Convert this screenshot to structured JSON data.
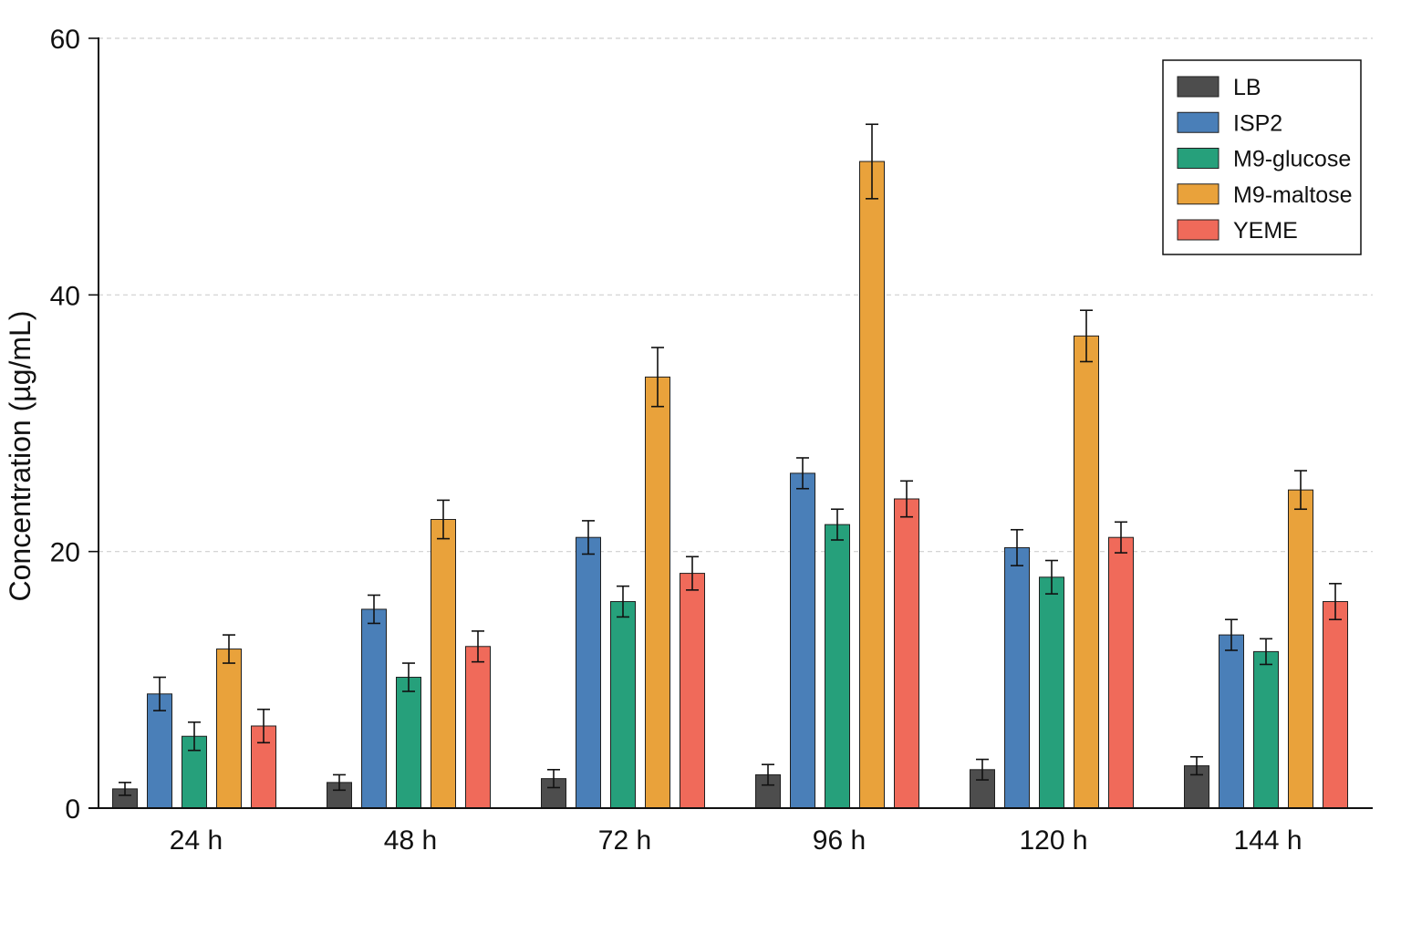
{
  "chart_data": {
    "type": "bar",
    "categories": [
      "24 h",
      "48 h",
      "72 h",
      "96 h",
      "120 h",
      "144 h"
    ],
    "series": [
      {
        "name": "LB",
        "color": "#4d4d4d",
        "values": [
          1.5,
          2.0,
          2.3,
          2.6,
          3.0,
          3.3
        ],
        "errors": [
          0.5,
          0.6,
          0.7,
          0.8,
          0.8,
          0.7
        ]
      },
      {
        "name": "ISP2",
        "color": "#4a7fb8",
        "values": [
          8.9,
          15.5,
          21.1,
          26.1,
          20.3,
          13.5
        ],
        "errors": [
          1.3,
          1.1,
          1.3,
          1.2,
          1.4,
          1.2
        ]
      },
      {
        "name": "M9-glucose",
        "color": "#26a07b",
        "values": [
          5.6,
          10.2,
          16.1,
          22.1,
          18.0,
          12.2
        ],
        "errors": [
          1.1,
          1.1,
          1.2,
          1.2,
          1.3,
          1.0
        ]
      },
      {
        "name": "M9-maltose",
        "color": "#e9a23b",
        "values": [
          12.4,
          22.5,
          33.6,
          50.4,
          36.8,
          24.8
        ],
        "errors": [
          1.1,
          1.5,
          2.3,
          2.9,
          2.0,
          1.5
        ]
      },
      {
        "name": "YEME",
        "color": "#f06a5a",
        "values": [
          6.4,
          12.6,
          18.3,
          24.1,
          21.1,
          16.1
        ],
        "errors": [
          1.3,
          1.2,
          1.3,
          1.4,
          1.2,
          1.4
        ]
      }
    ],
    "ylabel": "Concentration (µg/mL)",
    "ylim": [
      0,
      60
    ],
    "yticks": [
      0,
      20,
      40,
      60
    ],
    "grid": true,
    "legend_position": "top-right"
  }
}
